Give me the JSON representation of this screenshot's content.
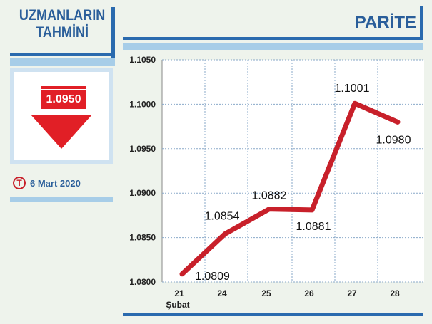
{
  "left_panel": {
    "title_line1": "UZMANLARIN",
    "title_line2": "TAHMİNİ",
    "forecast_value": "1.0950",
    "forecast_direction": "down",
    "logo_letter": "T",
    "date": "6 Mart 2020"
  },
  "colors": {
    "accent_blue": "#2a6aae",
    "light_blue": "#a7cde8",
    "line_red": "#c8202a",
    "arrow_red": "#e11f26"
  },
  "chart_data": {
    "type": "line",
    "title": "PARİTE",
    "categories": [
      "21",
      "24",
      "25",
      "26",
      "27",
      "28"
    ],
    "x_sublabel": "Şubat",
    "series": [
      {
        "values": [
          1.0809,
          1.0854,
          1.0882,
          1.0881,
          1.1001,
          1.098
        ]
      }
    ],
    "data_labels": [
      "1.0809",
      "1.0854",
      "1.0882",
      "1.0881",
      "1.1001",
      "1.0980"
    ],
    "ylim": [
      1.08,
      1.105
    ],
    "yticks": [
      "1.0800",
      "1.0850",
      "1.0900",
      "1.0950",
      "1.1000",
      "1.1050"
    ],
    "grid": true
  }
}
